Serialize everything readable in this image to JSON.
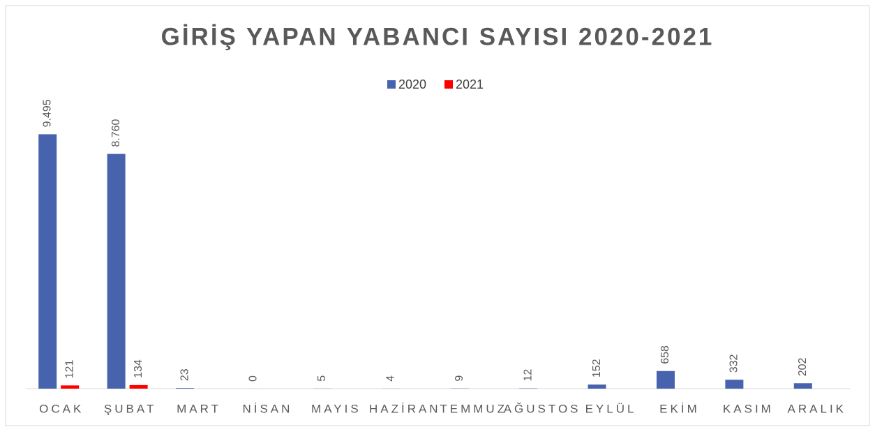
{
  "chart_data": {
    "type": "bar",
    "title": "GİRİŞ YAPAN YABANCI SAYISI 2020-2021",
    "categories": [
      "OCAK",
      "ŞUBAT",
      "MART",
      "NİSAN",
      "MAYIS",
      "HAZİRAN",
      "TEMMUZ",
      "AĞUSTOS",
      "EYLÜL",
      "EKİM",
      "KASIM",
      "ARALIK"
    ],
    "series": [
      {
        "name": "2020",
        "color": "#4763ae",
        "values": [
          9495,
          8760,
          23,
          0,
          5,
          4,
          9,
          12,
          152,
          658,
          332,
          202
        ],
        "value_labels": [
          "9.495",
          "8.760",
          "23",
          "0",
          "5",
          "4",
          "9",
          "12",
          "152",
          "658",
          "332",
          "202"
        ]
      },
      {
        "name": "2021",
        "color": "#ff0000",
        "values": [
          121,
          134,
          null,
          null,
          null,
          null,
          null,
          null,
          null,
          null,
          null,
          null
        ],
        "value_labels": [
          "121",
          "134",
          null,
          null,
          null,
          null,
          null,
          null,
          null,
          null,
          null,
          null
        ]
      }
    ],
    "ylim": [
      0,
      10000
    ],
    "legend": "top"
  }
}
